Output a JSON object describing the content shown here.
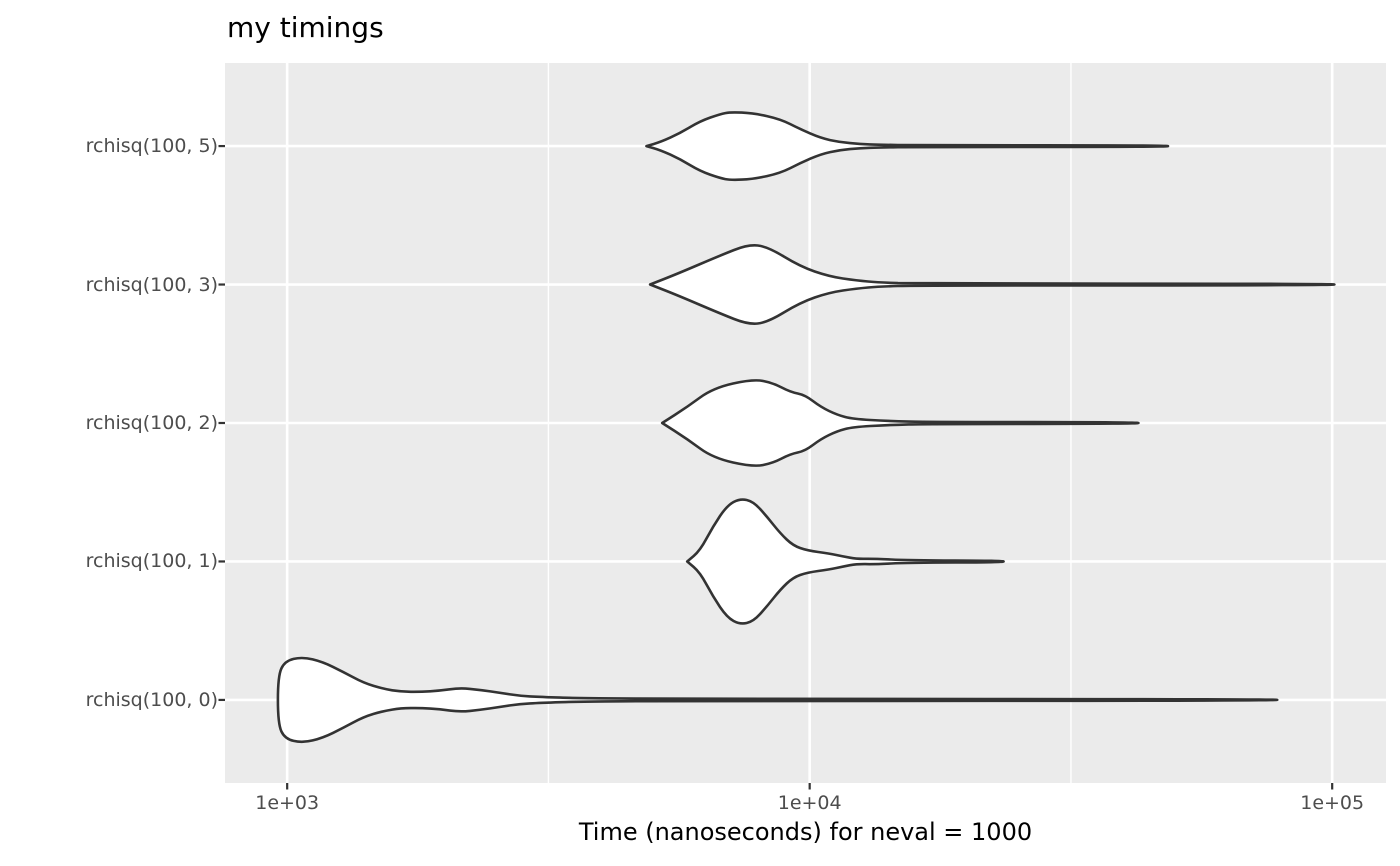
{
  "chart_data": {
    "type": "violin",
    "orientation": "horizontal",
    "title": "my timings",
    "xlabel": "Time (nanoseconds) for neval = 1000",
    "ylabel": "",
    "x_scale": "log10",
    "x_domain_log10": [
      2.881,
      5.103
    ],
    "x_major_ticks": [
      {
        "value_ns": 1000,
        "label": "1e+03"
      },
      {
        "value_ns": 10000,
        "label": "1e+04"
      },
      {
        "value_ns": 100000,
        "label": "1e+05"
      }
    ],
    "x_minor_ticks_ns": [
      3162,
      31623
    ],
    "grid": {
      "x": "major-and-minor",
      "y": "major-only"
    },
    "legend": "none",
    "categories": [
      "rchisq(100, 5)",
      "rchisq(100, 3)",
      "rchisq(100, 2)",
      "rchisq(100, 1)",
      "rchisq(100, 0)"
    ],
    "series": [
      {
        "label": "rchisq(100, 5)",
        "min_ns": 4870,
        "mode_ns": 7050,
        "max_ns": 48500,
        "profile_ns_halfwidthpx": [
          [
            4870,
            0
          ],
          [
            5180,
            4
          ],
          [
            5650,
            13
          ],
          [
            6170,
            25
          ],
          [
            6740,
            32
          ],
          [
            7050,
            34
          ],
          [
            7800,
            33
          ],
          [
            8790,
            27
          ],
          [
            9590,
            17
          ],
          [
            10500,
            8
          ],
          [
            11400,
            4
          ],
          [
            12500,
            2
          ],
          [
            13600,
            1.4
          ],
          [
            16000,
            0.8
          ],
          [
            48500,
            0.8
          ]
        ]
      },
      {
        "label": "rchisq(100, 3)",
        "min_ns": 4950,
        "mode_ns": 7620,
        "max_ns": 101000,
        "profile_ns_halfwidthpx": [
          [
            4950,
            0
          ],
          [
            5600,
            11
          ],
          [
            6740,
            29
          ],
          [
            7620,
            40
          ],
          [
            8300,
            38
          ],
          [
            9590,
            18
          ],
          [
            10900,
            8
          ],
          [
            12300,
            4
          ],
          [
            13600,
            2
          ],
          [
            16000,
            0.9
          ],
          [
            101000,
            0.8
          ]
        ]
      },
      {
        "label": "rchisq(100, 2)",
        "min_ns": 5220,
        "mode_ns": 7800,
        "max_ns": 42600,
        "profile_ns_halfwidthpx": [
          [
            5220,
            0
          ],
          [
            5830,
            16
          ],
          [
            6530,
            35
          ],
          [
            7800,
            44
          ],
          [
            8510,
            40
          ],
          [
            9180,
            31
          ],
          [
            9800,
            28
          ],
          [
            10500,
            16
          ],
          [
            11300,
            8
          ],
          [
            12100,
            4
          ],
          [
            14100,
            2
          ],
          [
            17000,
            0.9
          ],
          [
            42600,
            0.8
          ]
        ]
      },
      {
        "label": "rchisq(100, 1)",
        "min_ns": 5830,
        "mode_ns": 7360,
        "max_ns": 23500,
        "profile_ns_halfwidthpx": [
          [
            5830,
            0
          ],
          [
            6170,
            11
          ],
          [
            6530,
            35
          ],
          [
            6950,
            56
          ],
          [
            7360,
            63
          ],
          [
            7800,
            60
          ],
          [
            8280,
            45
          ],
          [
            8790,
            28
          ],
          [
            9290,
            16
          ],
          [
            9890,
            11
          ],
          [
            10900,
            8
          ],
          [
            11600,
            5
          ],
          [
            12300,
            2.5
          ],
          [
            13300,
            2.8
          ],
          [
            15400,
            1.2
          ],
          [
            23500,
            0.8
          ]
        ]
      },
      {
        "label": "rchisq(100, 0)",
        "min_ns": 960,
        "mode_ns": 1070,
        "max_ns": 78500,
        "trimmed_left": true,
        "profile_ns_halfwidthpx": [
          [
            960,
            24
          ],
          [
            990,
            39
          ],
          [
            1070,
            43
          ],
          [
            1170,
            38
          ],
          [
            1280,
            28
          ],
          [
            1400,
            17
          ],
          [
            1530,
            11
          ],
          [
            1650,
            8.3
          ],
          [
            1800,
            8
          ],
          [
            1960,
            9.3
          ],
          [
            2140,
            12
          ],
          [
            2340,
            10
          ],
          [
            2560,
            7
          ],
          [
            2790,
            4
          ],
          [
            3050,
            3
          ],
          [
            3640,
            1.6
          ],
          [
            6170,
            1
          ],
          [
            78500,
            0.8
          ]
        ]
      }
    ],
    "style": {
      "panel_bg": "#EBEBEB",
      "grid_color": "#FFFFFF",
      "violin_stroke": "#333333",
      "violin_fill": "#FFFFFF",
      "axis_text_color": "#4D4D4D",
      "tick_color": "#333333",
      "title_color": "#000000"
    }
  }
}
